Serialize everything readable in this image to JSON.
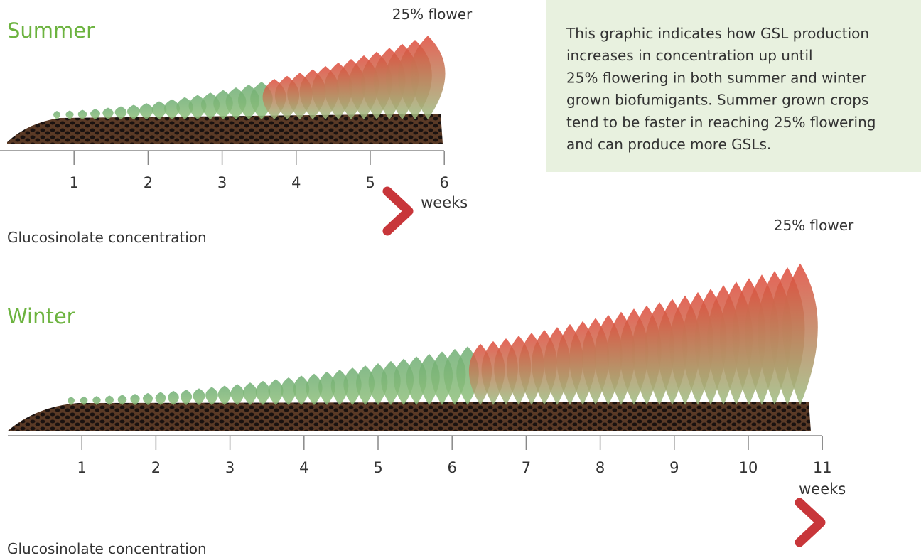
{
  "summer": {
    "title": "Summer",
    "flower_label": "25% flower",
    "ticks": [
      1,
      2,
      3,
      4,
      5,
      6
    ],
    "unit": "weeks",
    "arrow_label": "Glucosinolate concentration"
  },
  "winter": {
    "title": "Winter",
    "flower_label": "25% flower",
    "ticks": [
      1,
      2,
      3,
      4,
      5,
      6,
      7,
      8,
      9,
      10,
      11
    ],
    "unit": "weeks",
    "arrow_label": "Glucosinolate concentration"
  },
  "info": {
    "lines": [
      "This graphic indicates how GSL production",
      "increases in concentration up until",
      "25% flowering in both summer and winter",
      "grown biofumigants. Summer grown crops",
      "tend to be faster in reaching 25% flowering",
      "and can produce more GSLs."
    ]
  }
}
